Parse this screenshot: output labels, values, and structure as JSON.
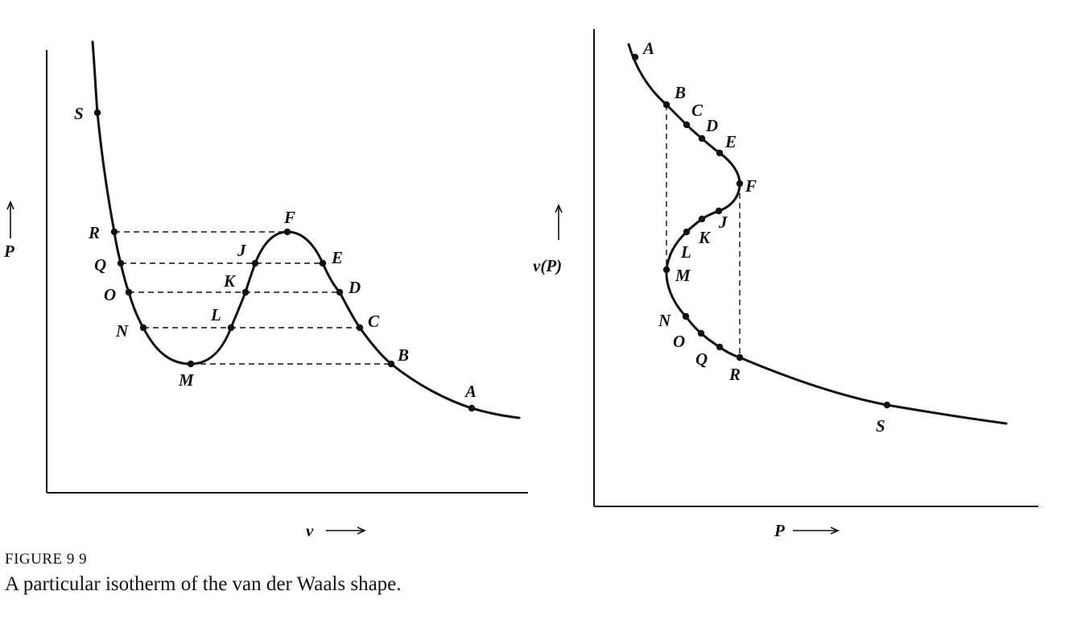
{
  "figure": {
    "number_label": "FIGURE 9 9",
    "caption": "A particular isotherm of the van der Waals shape."
  },
  "left_plot": {
    "x_axis_label": "v",
    "y_axis_label": "P",
    "points": [
      "S",
      "R",
      "Q",
      "O",
      "N",
      "M",
      "L",
      "K",
      "J",
      "F",
      "E",
      "D",
      "C",
      "B",
      "A"
    ]
  },
  "right_plot": {
    "x_axis_label": "P",
    "y_axis_label": "v(P)",
    "points": [
      "A",
      "B",
      "C",
      "D",
      "E",
      "F",
      "J",
      "K",
      "L",
      "M",
      "N",
      "O",
      "Q",
      "R",
      "S"
    ]
  }
}
